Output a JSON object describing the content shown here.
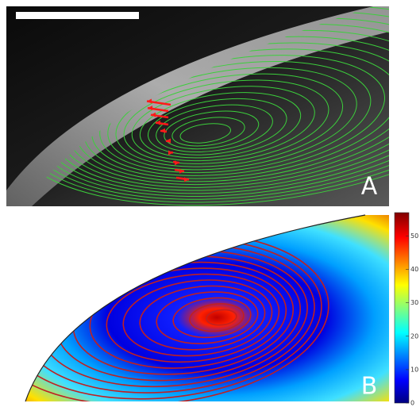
{
  "panels": [
    {
      "label": "A"
    },
    {
      "label": "B",
      "colorbar": {
        "clim": [
          0,
          57
        ],
        "ticks": [
          0,
          10,
          20,
          30,
          40,
          50
        ]
      }
    }
  ]
}
